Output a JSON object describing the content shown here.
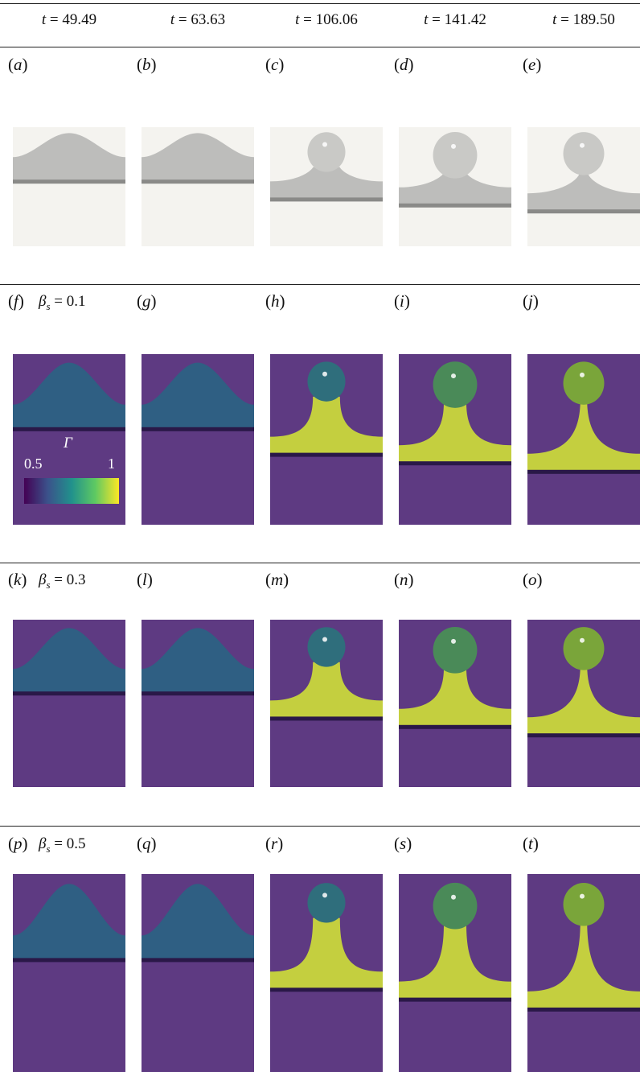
{
  "headers": [
    {
      "var": "t",
      "value": "49.49"
    },
    {
      "var": "t",
      "value": "63.63"
    },
    {
      "var": "t",
      "value": "106.06"
    },
    {
      "var": "t",
      "value": "141.42"
    },
    {
      "var": "t",
      "value": "189.50"
    }
  ],
  "rows": [
    {
      "beta": null,
      "labels": [
        "a",
        "b",
        "c",
        "d",
        "e"
      ],
      "colormap": "gray"
    },
    {
      "beta": {
        "symbol": "β",
        "sub": "s",
        "value": "0.1"
      },
      "labels": [
        "f",
        "g",
        "h",
        "i",
        "j"
      ],
      "colormap": "viridis"
    },
    {
      "beta": {
        "symbol": "β",
        "sub": "s",
        "value": "0.3"
      },
      "labels": [
        "k",
        "l",
        "m",
        "n",
        "o"
      ],
      "colormap": "viridis"
    },
    {
      "beta": {
        "symbol": "β",
        "sub": "s",
        "value": "0.5"
      },
      "labels": [
        "p",
        "q",
        "r",
        "s",
        "t"
      ],
      "colormap": "viridis"
    }
  ],
  "colorbar": {
    "symbol": "Γ",
    "min": "0.5",
    "max": "1"
  },
  "colors": {
    "viridis_dark": "#3b1a5a",
    "viridis_mid": "#3e7f84",
    "viridis_bright": "#d9de3a",
    "gray_base": "#f4f3ef",
    "gray_shade": "#8a8a88"
  }
}
